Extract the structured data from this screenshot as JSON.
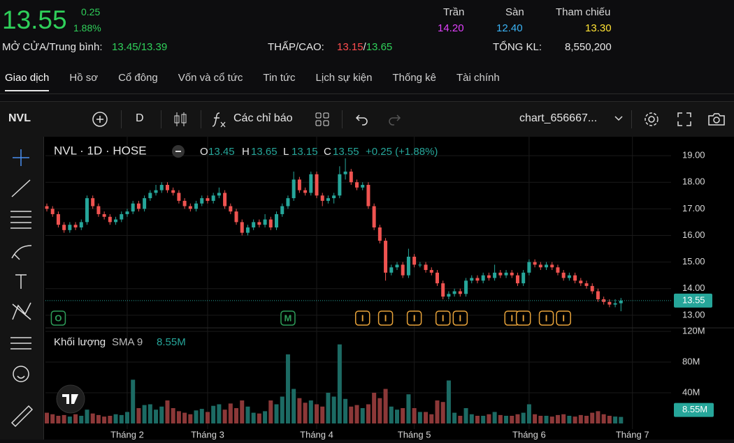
{
  "header": {
    "price": "13.55",
    "change": "0.25",
    "change_pct": "1.88%",
    "ceiling": {
      "label": "Trần",
      "value": "14.20"
    },
    "floor": {
      "label": "Sàn",
      "value": "12.40"
    },
    "reference": {
      "label": "Tham chiếu",
      "value": "13.30"
    },
    "open_avg": {
      "label": "MỞ CỬA/Trung bình:",
      "value": "13.45/13.39"
    },
    "low_high": {
      "label": "THẤP/CAO:",
      "low": "13.15",
      "separator": "/",
      "high": "13.65"
    },
    "total_volume": {
      "label": "TỔNG KL:",
      "value": "8,550,200"
    }
  },
  "tabs": [
    "Giao dịch",
    "Hồ sơ",
    "Cổ đông",
    "Vốn và cổ tức",
    "Tin tức",
    "Lịch sự kiện",
    "Thống kê",
    "Tài chính"
  ],
  "active_tab": 0,
  "toolbar": {
    "symbol": "NVL",
    "interval": "D",
    "indicators": "Các chỉ báo",
    "layout_name": "chart_656667..."
  },
  "chart_data": {
    "type": "candlestick",
    "legend": {
      "symbol_label": "NVL · 1D · HOSE",
      "keys": [
        "O",
        "H",
        "L",
        "C"
      ],
      "change_label": "+0.25 (+1.88%)"
    },
    "volume_legend": {
      "name": "Khối lượng",
      "indicator": "SMA 9"
    },
    "categories": [
      null,
      null,
      null,
      null,
      null,
      null,
      null,
      null,
      null,
      null,
      null,
      null,
      null,
      null,
      "Tháng 2",
      null,
      null,
      null,
      null,
      null,
      null,
      null,
      null,
      null,
      null,
      null,
      null,
      null,
      "Tháng 3",
      null,
      null,
      null,
      null,
      null,
      null,
      null,
      null,
      null,
      null,
      null,
      null,
      null,
      null,
      null,
      null,
      null,
      null,
      "Tháng 4",
      null,
      null,
      null,
      null,
      null,
      null,
      null,
      null,
      null,
      null,
      null,
      null,
      null,
      null,
      null,
      null,
      "Tháng 5",
      null,
      null,
      null,
      null,
      null,
      null,
      null,
      null,
      null,
      null,
      null,
      null,
      null,
      null,
      null,
      null,
      null,
      null,
      null,
      "Tháng 6",
      null,
      null,
      null,
      null,
      null,
      null,
      null,
      null,
      null,
      null,
      null,
      null,
      null,
      null,
      null,
      null,
      null,
      "Tháng 7",
      null,
      null,
      null,
      null,
      null,
      null
    ],
    "ohlc": [
      [
        17.1,
        17.2,
        16.9,
        17.0
      ],
      [
        17.0,
        17.1,
        16.7,
        16.8
      ],
      [
        16.8,
        16.9,
        16.3,
        16.4
      ],
      [
        16.4,
        16.5,
        16.1,
        16.2
      ],
      [
        16.2,
        16.5,
        16.1,
        16.4
      ],
      [
        16.4,
        16.5,
        16.2,
        16.3
      ],
      [
        16.3,
        16.6,
        16.2,
        16.5
      ],
      [
        16.5,
        17.5,
        16.4,
        17.4
      ],
      [
        17.4,
        17.5,
        17.0,
        17.1
      ],
      [
        17.1,
        17.2,
        16.7,
        16.8
      ],
      [
        16.8,
        16.9,
        16.6,
        16.7
      ],
      [
        16.7,
        16.8,
        16.4,
        16.5
      ],
      [
        16.5,
        16.7,
        16.4,
        16.6
      ],
      [
        16.6,
        16.9,
        16.5,
        16.8
      ],
      [
        16.8,
        17.0,
        16.7,
        16.9
      ],
      [
        16.9,
        17.3,
        16.8,
        17.2
      ],
      [
        17.2,
        17.3,
        16.9,
        17.0
      ],
      [
        17.0,
        17.5,
        16.9,
        17.4
      ],
      [
        17.4,
        17.7,
        17.3,
        17.6
      ],
      [
        17.6,
        17.9,
        17.5,
        17.7
      ],
      [
        17.7,
        18.0,
        17.6,
        17.9
      ],
      [
        17.9,
        18.0,
        17.6,
        17.7
      ],
      [
        17.7,
        17.8,
        17.5,
        17.6
      ],
      [
        17.6,
        17.7,
        17.2,
        17.3
      ],
      [
        17.3,
        17.4,
        17.0,
        17.1
      ],
      [
        17.1,
        17.2,
        16.9,
        17.0
      ],
      [
        17.0,
        17.3,
        16.9,
        17.2
      ],
      [
        17.2,
        17.5,
        17.1,
        17.4
      ],
      [
        17.4,
        17.5,
        17.2,
        17.3
      ],
      [
        17.3,
        17.6,
        17.2,
        17.5
      ],
      [
        17.5,
        17.8,
        17.4,
        17.6
      ],
      [
        17.6,
        17.7,
        17.0,
        17.1
      ],
      [
        17.1,
        17.2,
        16.8,
        16.9
      ],
      [
        16.9,
        17.0,
        16.4,
        16.5
      ],
      [
        16.5,
        16.6,
        16.0,
        16.1
      ],
      [
        16.1,
        16.4,
        16.0,
        16.3
      ],
      [
        16.3,
        16.6,
        16.2,
        16.5
      ],
      [
        16.5,
        16.6,
        16.3,
        16.4
      ],
      [
        16.4,
        16.8,
        16.3,
        16.6
      ],
      [
        16.6,
        16.7,
        16.2,
        16.3
      ],
      [
        16.3,
        16.9,
        16.2,
        16.8
      ],
      [
        16.8,
        17.2,
        16.7,
        17.1
      ],
      [
        17.1,
        17.5,
        17.0,
        17.4
      ],
      [
        17.4,
        18.4,
        17.3,
        18.1
      ],
      [
        18.1,
        18.2,
        17.6,
        17.7
      ],
      [
        17.7,
        17.8,
        17.5,
        17.6
      ],
      [
        17.6,
        18.4,
        17.5,
        18.3
      ],
      [
        18.3,
        18.4,
        17.4,
        17.5
      ],
      [
        17.5,
        17.6,
        17.1,
        17.3
      ],
      [
        17.3,
        17.5,
        17.2,
        17.4
      ],
      [
        17.4,
        17.6,
        17.2,
        17.5
      ],
      [
        17.5,
        18.6,
        17.4,
        18.3
      ],
      [
        18.3,
        18.9,
        18.1,
        18.4
      ],
      [
        18.4,
        18.5,
        17.9,
        18.0
      ],
      [
        18.0,
        18.1,
        17.7,
        17.8
      ],
      [
        17.8,
        18.0,
        17.7,
        17.9
      ],
      [
        17.9,
        18.0,
        17.0,
        17.1
      ],
      [
        17.1,
        17.2,
        16.2,
        16.3
      ],
      [
        16.3,
        16.4,
        15.7,
        15.8
      ],
      [
        15.8,
        15.9,
        14.3,
        14.6
      ],
      [
        14.6,
        14.9,
        14.5,
        14.8
      ],
      [
        14.8,
        15.0,
        14.7,
        14.9
      ],
      [
        14.9,
        15.0,
        14.4,
        14.5
      ],
      [
        14.5,
        15.5,
        14.4,
        15.2
      ],
      [
        15.2,
        15.3,
        14.8,
        14.9
      ],
      [
        14.9,
        15.0,
        14.8,
        14.9
      ],
      [
        14.9,
        15.0,
        14.6,
        14.7
      ],
      [
        14.7,
        14.8,
        14.5,
        14.6
      ],
      [
        14.6,
        14.7,
        14.1,
        14.2
      ],
      [
        14.2,
        14.3,
        13.6,
        13.7
      ],
      [
        13.7,
        13.9,
        13.6,
        13.8
      ],
      [
        13.8,
        14.0,
        13.7,
        13.9
      ],
      [
        13.9,
        14.0,
        13.7,
        13.8
      ],
      [
        13.8,
        14.4,
        13.7,
        14.3
      ],
      [
        14.3,
        14.5,
        14.2,
        14.4
      ],
      [
        14.4,
        14.5,
        14.2,
        14.3
      ],
      [
        14.3,
        14.6,
        14.2,
        14.5
      ],
      [
        14.5,
        14.6,
        14.3,
        14.4
      ],
      [
        14.4,
        14.9,
        14.3,
        14.6
      ],
      [
        14.6,
        14.7,
        14.4,
        14.5
      ],
      [
        14.5,
        14.7,
        14.4,
        14.6
      ],
      [
        14.6,
        14.7,
        14.4,
        14.5
      ],
      [
        14.5,
        14.6,
        14.1,
        14.2
      ],
      [
        14.2,
        14.7,
        14.1,
        14.6
      ],
      [
        14.6,
        15.1,
        14.5,
        15.0
      ],
      [
        15.0,
        15.1,
        14.8,
        14.9
      ],
      [
        14.9,
        15.0,
        14.7,
        14.8
      ],
      [
        14.8,
        15.0,
        14.7,
        14.9
      ],
      [
        14.9,
        15.0,
        14.7,
        14.8
      ],
      [
        14.8,
        14.9,
        14.5,
        14.6
      ],
      [
        14.6,
        14.7,
        14.3,
        14.4
      ],
      [
        14.4,
        14.6,
        14.3,
        14.5
      ],
      [
        14.5,
        14.6,
        14.2,
        14.3
      ],
      [
        14.3,
        14.4,
        14.1,
        14.2
      ],
      [
        14.2,
        14.3,
        14.0,
        14.1
      ],
      [
        14.1,
        14.2,
        13.8,
        13.9
      ],
      [
        13.9,
        14.0,
        13.5,
        13.6
      ],
      [
        13.6,
        13.7,
        13.4,
        13.5
      ],
      [
        13.5,
        13.6,
        13.3,
        13.4
      ],
      [
        13.4,
        13.6,
        13.3,
        13.45
      ],
      [
        13.45,
        13.65,
        13.15,
        13.55
      ],
      null,
      null,
      null,
      null,
      null,
      null,
      null,
      null
    ],
    "volumes": [
      14,
      12,
      10,
      11,
      9,
      12,
      10,
      18,
      13,
      11,
      9,
      10,
      12,
      11,
      15,
      57,
      20,
      24,
      25,
      18,
      22,
      30,
      20,
      16,
      14,
      12,
      17,
      19,
      15,
      23,
      25,
      18,
      26,
      20,
      30,
      22,
      14,
      13,
      16,
      30,
      25,
      35,
      90,
      45,
      33,
      27,
      30,
      25,
      22,
      40,
      35,
      103,
      32,
      22,
      24,
      20,
      25,
      40,
      33,
      45,
      22,
      18,
      20,
      38,
      20,
      15,
      15,
      12,
      30,
      28,
      56,
      14,
      10,
      20,
      12,
      10,
      10,
      12,
      15,
      11,
      10,
      10,
      12,
      14,
      25,
      12,
      10,
      10,
      9,
      11,
      12,
      10,
      9,
      11,
      10,
      14,
      16,
      12,
      10,
      9,
      8.55,
      null,
      null,
      null,
      null,
      null,
      null,
      null,
      null
    ],
    "volume_last_label": "8.55M",
    "ylim": [
      12.55,
      19.71
    ],
    "yticks": [
      {
        "value": 13,
        "label": "13.00"
      },
      {
        "value": 14,
        "label": "14.00"
      },
      {
        "value": 15,
        "label": "15.00"
      },
      {
        "value": 16,
        "label": "16.00"
      },
      {
        "value": 17,
        "label": "17.00"
      },
      {
        "value": 18,
        "label": "18.00"
      },
      {
        "value": 19,
        "label": "19.00"
      }
    ],
    "volume_ylim": [
      0,
      123.6
    ],
    "volume_yticks": [
      {
        "value": 40,
        "label": "40M"
      },
      {
        "value": 80,
        "label": "80M"
      },
      {
        "value": 120,
        "label": "120M"
      }
    ],
    "up_color": "#26a69a",
    "down_color": "#ef5350",
    "volume_up_color": "#1c6b64",
    "volume_down_color": "#8c3838",
    "grid": true,
    "events": [
      {
        "label": "O",
        "index": 2,
        "color": "#2e9e5a"
      },
      {
        "label": "M",
        "index": 42,
        "color": "#2e9e5a"
      },
      {
        "label": "I",
        "index": 55,
        "color": "#e8a33a"
      },
      {
        "label": "I",
        "index": 59,
        "color": "#e8a33a"
      },
      {
        "label": "I",
        "index": 64,
        "color": "#e8a33a"
      },
      {
        "label": "I",
        "index": 69,
        "color": "#e8a33a"
      },
      {
        "label": "I",
        "index": 72,
        "color": "#e8a33a"
      },
      {
        "label": "I",
        "index": 81,
        "color": "#e8a33a"
      },
      {
        "label": "I",
        "index": 83,
        "color": "#e8a33a"
      },
      {
        "label": "I",
        "index": 87,
        "color": "#e8a33a"
      },
      {
        "label": "I",
        "index": 90,
        "color": "#e8a33a"
      }
    ]
  }
}
